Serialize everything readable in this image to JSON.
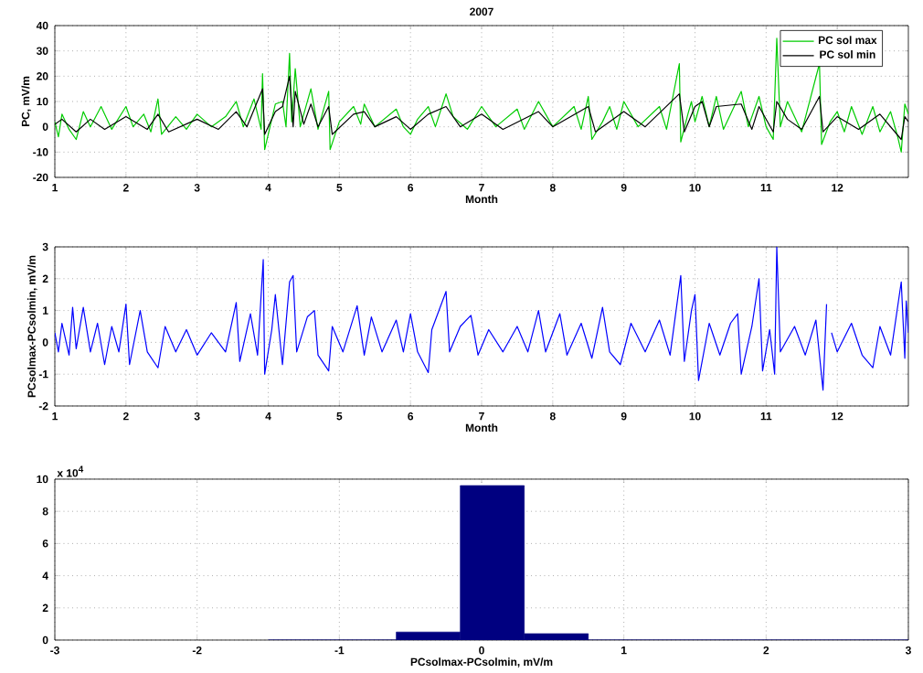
{
  "chart_data": [
    {
      "type": "line",
      "title": "2007",
      "xlabel": "Month",
      "ylabel": "PC, mV/m",
      "xlim": [
        1,
        13
      ],
      "xticks": [
        1,
        2,
        3,
        4,
        5,
        6,
        7,
        8,
        9,
        10,
        11,
        12
      ],
      "ylim": [
        -20,
        40
      ],
      "yticks": [
        -20,
        -10,
        0,
        10,
        20,
        30,
        40
      ],
      "grid": true,
      "legend": "top right",
      "series": [
        {
          "name": "PC sol max",
          "color": "#00cc00",
          "x": [
            1,
            1.05,
            1.1,
            1.2,
            1.3,
            1.4,
            1.5,
            1.65,
            1.8,
            2.0,
            2.1,
            2.25,
            2.35,
            2.45,
            2.5,
            2.7,
            2.85,
            3.0,
            3.2,
            3.4,
            3.55,
            3.65,
            3.8,
            3.9,
            3.92,
            3.95,
            4.05,
            4.1,
            4.2,
            4.25,
            4.3,
            4.33,
            4.38,
            4.45,
            4.6,
            4.7,
            4.85,
            4.87,
            5.0,
            5.2,
            5.3,
            5.35,
            5.5,
            5.8,
            5.9,
            6.0,
            6.1,
            6.25,
            6.35,
            6.5,
            6.6,
            6.8,
            7.0,
            7.2,
            7.5,
            7.6,
            7.8,
            8.0,
            8.3,
            8.4,
            8.5,
            8.55,
            8.7,
            8.8,
            8.9,
            9.0,
            9.2,
            9.5,
            9.6,
            9.78,
            9.8,
            9.9,
            9.95,
            10.0,
            10.1,
            10.2,
            10.3,
            10.4,
            10.65,
            10.75,
            10.9,
            11.0,
            11.1,
            11.15,
            11.2,
            11.3,
            11.5,
            11.75,
            11.78,
            11.9,
            12.0,
            12.1,
            12.2,
            12.35,
            12.5,
            12.6,
            12.75,
            12.85,
            12.9,
            12.95,
            13.0
          ],
          "values": [
            2,
            -4,
            5,
            -1,
            -5,
            6,
            0,
            8,
            -1,
            8,
            0,
            5,
            -2,
            11,
            -3,
            4,
            -1,
            5,
            0,
            4,
            10,
            0,
            11,
            -1,
            21,
            -9,
            3,
            9,
            10,
            0,
            29,
            2,
            23,
            0,
            15,
            -1,
            14,
            -9,
            2,
            8,
            1,
            9,
            0,
            7,
            0,
            -3,
            3,
            8,
            0,
            13,
            4,
            -1,
            8,
            0,
            7,
            -1,
            10,
            0,
            8,
            -1,
            12,
            -5,
            2,
            8,
            -1,
            10,
            0,
            8,
            -1,
            25,
            -6,
            5,
            10,
            2,
            12,
            0,
            12,
            -1,
            14,
            0,
            12,
            0,
            -5,
            35,
            0,
            10,
            -2,
            25,
            -7,
            2,
            6,
            -2,
            8,
            -3,
            8,
            -2,
            6,
            -4,
            -10,
            9,
            5
          ]
        },
        {
          "name": "PC sol min",
          "color": "#000000",
          "x": [
            1,
            1.1,
            1.3,
            1.5,
            1.7,
            2.0,
            2.3,
            2.45,
            2.6,
            3.0,
            3.3,
            3.55,
            3.7,
            3.92,
            3.95,
            4.1,
            4.2,
            4.3,
            4.35,
            4.38,
            4.5,
            4.6,
            4.7,
            4.85,
            4.9,
            5.2,
            5.35,
            5.5,
            5.8,
            6.0,
            6.25,
            6.5,
            6.7,
            7.0,
            7.3,
            7.8,
            8.0,
            8.5,
            8.6,
            9.0,
            9.3,
            9.78,
            9.85,
            10.0,
            10.1,
            10.2,
            10.3,
            10.65,
            10.8,
            10.9,
            11.1,
            11.15,
            11.3,
            11.5,
            11.75,
            11.8,
            12.0,
            12.3,
            12.6,
            12.9,
            12.95,
            13.0
          ],
          "values": [
            1,
            3,
            -2,
            3,
            -1,
            4,
            -1,
            5,
            -2,
            3,
            -1,
            6,
            0,
            15,
            -3,
            6,
            8,
            20,
            0,
            14,
            1,
            9,
            0,
            8,
            -3,
            5,
            6,
            0,
            4,
            -1,
            5,
            8,
            0,
            5,
            -1,
            6,
            0,
            8,
            -2,
            6,
            0,
            13,
            -2,
            8,
            10,
            0,
            8,
            9,
            -1,
            8,
            -2,
            10,
            3,
            -1,
            12,
            -2,
            4,
            -1,
            5,
            -5,
            4,
            2
          ]
        }
      ]
    },
    {
      "type": "line",
      "xlabel": "Month",
      "ylabel": "PCsolmax-PCsolmin, mV/m",
      "xlim": [
        1,
        13
      ],
      "xticks": [
        1,
        2,
        3,
        4,
        5,
        6,
        7,
        8,
        9,
        10,
        11,
        12
      ],
      "ylim": [
        -2,
        3
      ],
      "yticks": [
        -2,
        -1,
        0,
        1,
        2,
        3
      ],
      "grid": true,
      "series": [
        {
          "color": "#0000ff",
          "x": [
            1,
            1.05,
            1.1,
            1.2,
            1.25,
            1.3,
            1.4,
            1.5,
            1.6,
            1.7,
            1.8,
            1.9,
            2.0,
            2.05,
            2.2,
            2.3,
            2.45,
            2.55,
            2.7,
            2.85,
            3.0,
            3.2,
            3.4,
            3.55,
            3.6,
            3.75,
            3.85,
            3.93,
            3.95,
            4.05,
            4.1,
            4.2,
            4.3,
            4.35,
            4.4,
            4.55,
            4.65,
            4.7,
            4.85,
            4.9,
            5.05,
            5.25,
            5.35,
            5.45,
            5.6,
            5.8,
            5.9,
            6.0,
            6.1,
            6.25,
            6.3,
            6.5,
            6.55,
            6.7,
            6.85,
            6.95,
            7.1,
            7.3,
            7.5,
            7.65,
            7.8,
            7.9,
            8.1,
            8.2,
            8.4,
            8.55,
            8.7,
            8.8,
            8.95,
            9.1,
            9.3,
            9.5,
            9.65,
            9.8,
            9.85,
            9.95,
            10.0,
            10.05,
            10.2,
            10.35,
            10.5,
            10.6,
            10.65,
            10.8,
            10.9,
            10.95,
            11.05,
            11.12,
            11.15,
            11.2,
            11.4,
            11.55,
            11.7,
            11.8,
            11.85,
            11.88,
            11.92,
            12.0,
            12.2,
            12.35,
            12.5,
            12.6,
            12.75,
            12.9,
            12.95,
            12.97,
            13.0
          ],
          "values": [
            0.3,
            -0.3,
            0.6,
            -0.4,
            1.1,
            -0.2,
            1.1,
            -0.3,
            0.6,
            -0.7,
            0.5,
            -0.3,
            1.2,
            -0.7,
            1.0,
            -0.3,
            -0.8,
            0.5,
            -0.3,
            0.4,
            -0.4,
            0.3,
            -0.3,
            1.25,
            -0.6,
            0.9,
            -0.4,
            2.6,
            -1.0,
            0.4,
            1.5,
            -0.7,
            1.9,
            2.1,
            -0.3,
            0.8,
            1.0,
            -0.4,
            -0.9,
            0.5,
            -0.3,
            1.15,
            -0.4,
            0.8,
            -0.3,
            0.7,
            -0.3,
            0.9,
            -0.3,
            -0.95,
            0.4,
            1.6,
            -0.3,
            0.5,
            0.85,
            -0.4,
            0.4,
            -0.3,
            0.5,
            -0.3,
            1.0,
            -0.3,
            0.9,
            -0.4,
            0.6,
            -0.5,
            1.1,
            -0.3,
            -0.7,
            0.6,
            -0.3,
            0.7,
            -0.4,
            2.1,
            -0.6,
            1.0,
            1.5,
            -1.2,
            0.6,
            -0.4,
            0.6,
            0.9,
            -1.0,
            0.5,
            2.0,
            -0.9,
            0.4,
            -1.0,
            3.0,
            -0.3,
            0.5,
            -0.4,
            0.7,
            -1.5,
            1.2,
            null,
            0.3,
            -0.3,
            0.6,
            -0.4,
            -0.8,
            0.5,
            -0.4,
            1.9,
            -0.5,
            1.3,
            0.3
          ]
        }
      ]
    },
    {
      "type": "histogram",
      "xlabel": "PCsolmax-PCsolmin, mV/m",
      "xlim": [
        -3,
        3
      ],
      "xticks": [
        -3,
        -2,
        -1,
        0,
        1,
        2,
        3
      ],
      "ylim": [
        0,
        10
      ],
      "yticks": [
        0,
        2,
        4,
        6,
        8,
        10
      ],
      "grid": true,
      "color": "#000080",
      "annotations": [
        "x 10$^{4}$"
      ],
      "bins": [
        -1.5,
        -1.05,
        -0.6,
        -0.15,
        0.3,
        0.75,
        1.2,
        1.65,
        2.1,
        2.55,
        3.0
      ],
      "values": [
        0,
        0,
        0.5,
        9.6,
        0.4,
        0,
        0,
        0,
        0,
        0
      ]
    }
  ]
}
